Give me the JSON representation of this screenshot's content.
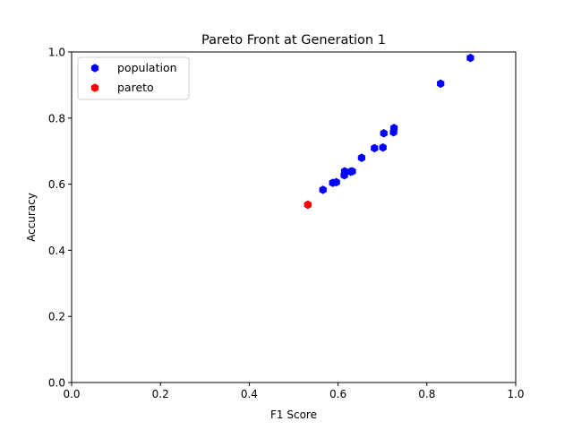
{
  "chart_data": {
    "type": "scatter",
    "title": "Pareto Front at Generation 1",
    "xlabel": "F1 Score",
    "ylabel": "Accuracy",
    "xlim": [
      0.0,
      1.0
    ],
    "ylim": [
      0.0,
      1.0
    ],
    "xticks": [
      "0.0",
      "0.2",
      "0.4",
      "0.6",
      "0.8",
      "1.0"
    ],
    "yticks": [
      "0.0",
      "0.2",
      "0.4",
      "0.6",
      "0.8",
      "1.0"
    ],
    "grid": false,
    "legend": {
      "position": "top-left"
    },
    "series": [
      {
        "name": "population",
        "color": "#0000ff",
        "marker": "hexagon",
        "points": [
          {
            "x": 0.532,
            "y": 0.538
          },
          {
            "x": 0.566,
            "y": 0.583
          },
          {
            "x": 0.588,
            "y": 0.604
          },
          {
            "x": 0.596,
            "y": 0.606
          },
          {
            "x": 0.614,
            "y": 0.627
          },
          {
            "x": 0.615,
            "y": 0.639
          },
          {
            "x": 0.628,
            "y": 0.638
          },
          {
            "x": 0.632,
            "y": 0.639
          },
          {
            "x": 0.653,
            "y": 0.68
          },
          {
            "x": 0.682,
            "y": 0.709
          },
          {
            "x": 0.701,
            "y": 0.711
          },
          {
            "x": 0.703,
            "y": 0.754
          },
          {
            "x": 0.725,
            "y": 0.757
          },
          {
            "x": 0.726,
            "y": 0.77
          },
          {
            "x": 0.831,
            "y": 0.904
          },
          {
            "x": 0.898,
            "y": 0.982
          }
        ]
      },
      {
        "name": "pareto",
        "color": "#ff0000",
        "marker": "hexagon",
        "points": [
          {
            "x": 0.532,
            "y": 0.538
          }
        ]
      }
    ]
  }
}
